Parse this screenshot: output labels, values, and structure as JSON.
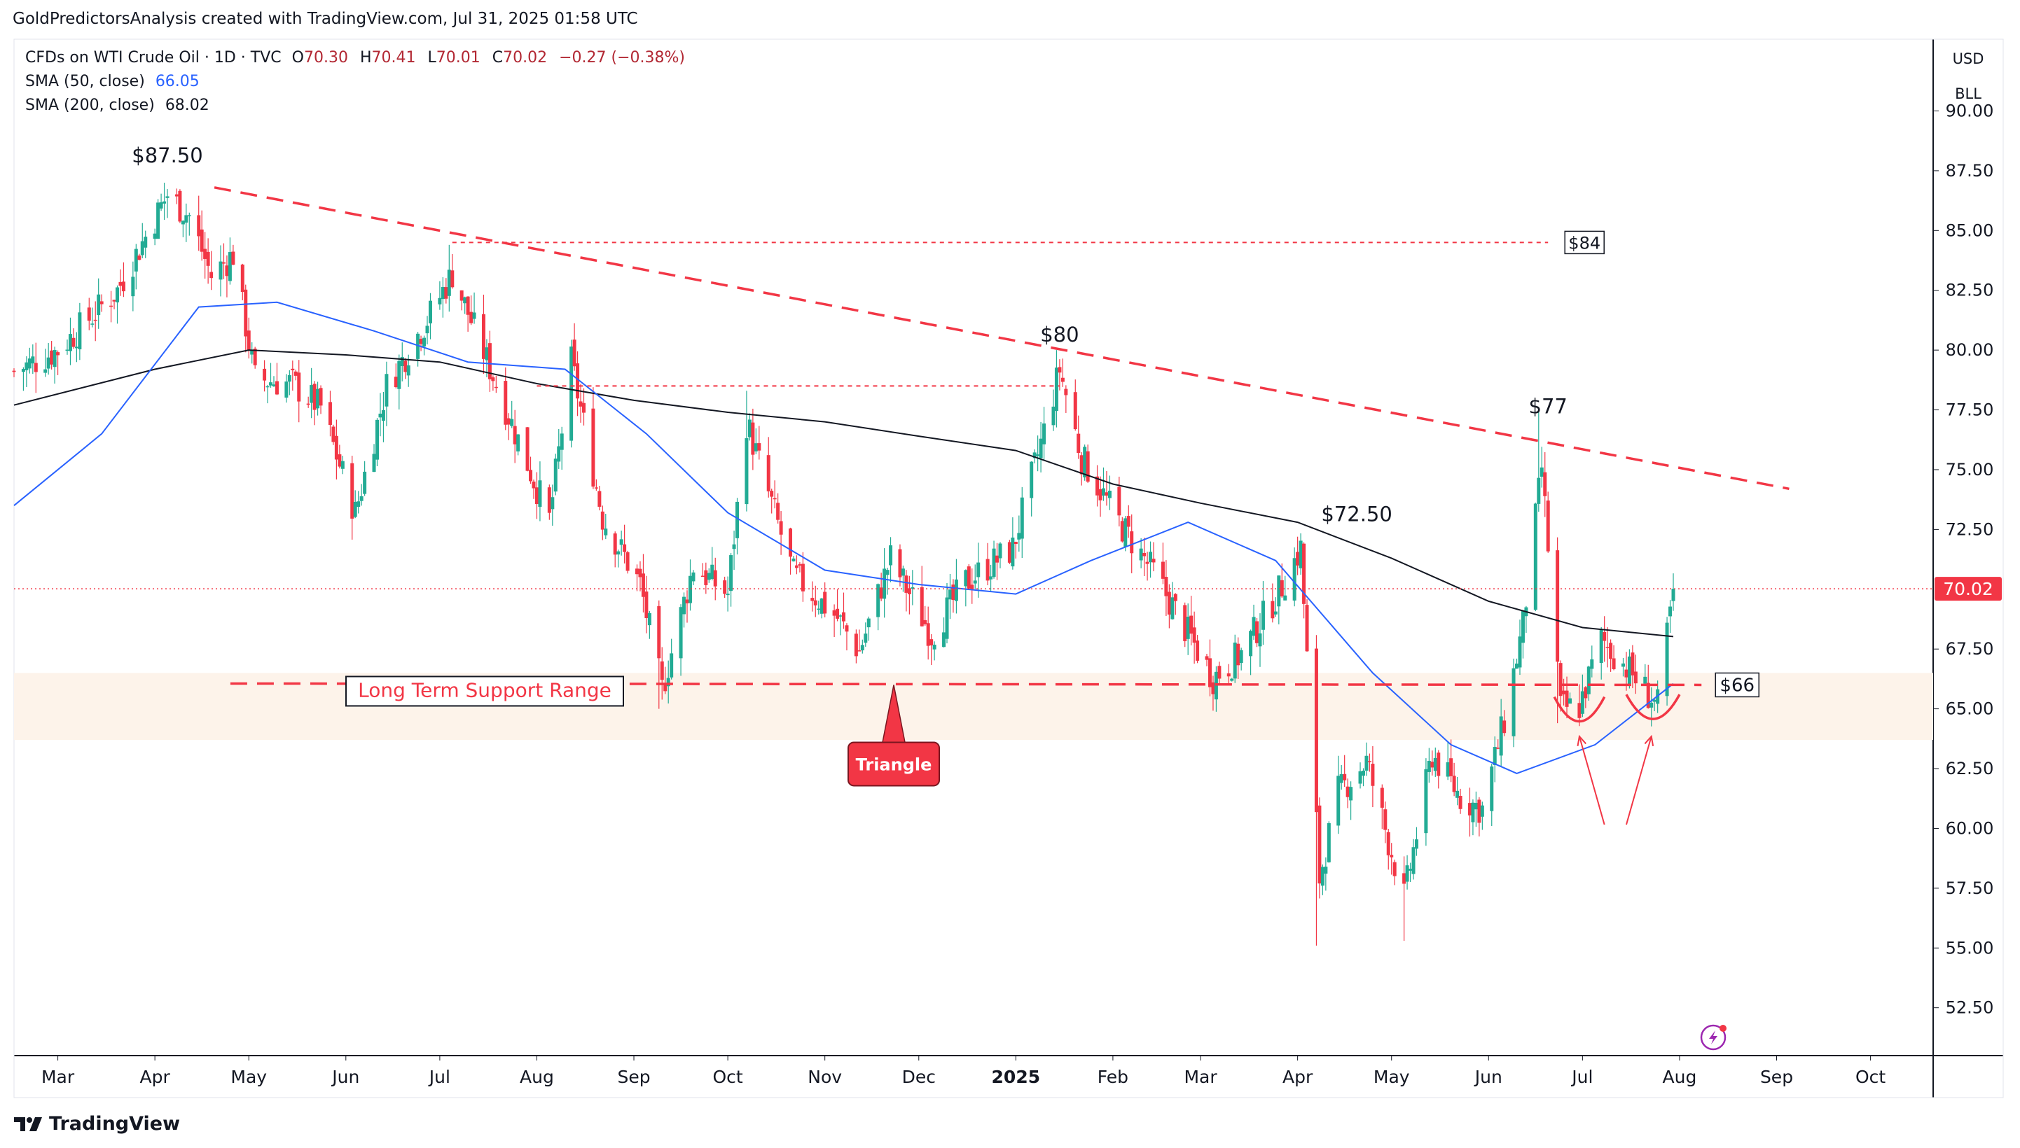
{
  "attribution": "GoldPredictorsAnalysis created with TradingView.com, Jul 31, 2025 01:58 UTC",
  "legend": {
    "symbol": "CFDs on WTI Crude Oil · 1D · TVC",
    "open_label": "O",
    "open": "70.30",
    "high_label": "H",
    "high": "70.41",
    "low_label": "L",
    "low": "70.01",
    "close_label": "C",
    "close": "70.02",
    "change": "−0.27 (−0.38%)",
    "sma50_label": "SMA (50, close)",
    "sma50_value": "66.05",
    "sma200_label": "SMA (200, close)",
    "sma200_value": "68.02"
  },
  "units": {
    "currency": "USD",
    "unit": "BLL"
  },
  "footer": {
    "brand": "TradingView"
  },
  "colors": {
    "up": "#22ab94",
    "down": "#f23645",
    "sma50": "#2962ff",
    "sma200": "#131722",
    "annotation": "#f23645",
    "support_band": "#fdf3ea",
    "price_tag": "#f23645"
  },
  "chart_data": {
    "type": "candlestick",
    "title": "CFDs on WTI Crude Oil · 1D · TVC",
    "x_ticks": [
      "Mar",
      "Apr",
      "May",
      "Jun",
      "Jul",
      "Aug",
      "Sep",
      "Oct",
      "Nov",
      "Dec",
      "2025",
      "Feb",
      "Mar",
      "Apr",
      "May",
      "Jun",
      "Jul",
      "Aug",
      "Sep",
      "Oct"
    ],
    "x_tick_dates": [
      "2024-03-01",
      "2024-04-01",
      "2024-05-01",
      "2024-06-01",
      "2024-07-01",
      "2024-08-01",
      "2024-09-01",
      "2024-10-01",
      "2024-11-01",
      "2024-12-01",
      "2025-01-01",
      "2025-02-01",
      "2025-03-01",
      "2025-04-01",
      "2025-05-01",
      "2025-06-01",
      "2025-07-01",
      "2025-08-01",
      "2025-09-01",
      "2025-10-01"
    ],
    "y_ticks": [
      "52.50",
      "55.00",
      "57.50",
      "60.00",
      "62.50",
      "65.00",
      "67.50",
      "72.50",
      "75.00",
      "77.50",
      "80.00",
      "82.50",
      "85.00",
      "87.50",
      "90.00"
    ],
    "ylim": [
      50.5,
      93.0
    ],
    "last_price": "70.02",
    "key_points": [
      {
        "date": "2024-02-16",
        "close": 79.1
      },
      {
        "date": "2024-03-01",
        "close": 80.0
      },
      {
        "date": "2024-03-20",
        "close": 82.5
      },
      {
        "date": "2024-04-05",
        "close": 86.5
      },
      {
        "date": "2024-04-12",
        "close": 85.6
      },
      {
        "date": "2024-04-19",
        "close": 83.1
      },
      {
        "date": "2024-04-26",
        "close": 84.0
      },
      {
        "date": "2024-05-03",
        "close": 78.8
      },
      {
        "date": "2024-05-15",
        "close": 78.6
      },
      {
        "date": "2024-05-24",
        "close": 77.6
      },
      {
        "date": "2024-06-04",
        "close": 73.2
      },
      {
        "date": "2024-06-14",
        "close": 78.5
      },
      {
        "date": "2024-06-28",
        "close": 81.5
      },
      {
        "date": "2024-07-05",
        "close": 83.2
      },
      {
        "date": "2024-07-19",
        "close": 78.6
      },
      {
        "date": "2024-08-05",
        "close": 72.9
      },
      {
        "date": "2024-08-12",
        "close": 79.5
      },
      {
        "date": "2024-08-22",
        "close": 73.0
      },
      {
        "date": "2024-09-03",
        "close": 70.2
      },
      {
        "date": "2024-09-10",
        "close": 65.8
      },
      {
        "date": "2024-09-20",
        "close": 71.0
      },
      {
        "date": "2024-10-01",
        "close": 69.8
      },
      {
        "date": "2024-10-07",
        "close": 77.0
      },
      {
        "date": "2024-10-14",
        "close": 74.0
      },
      {
        "date": "2024-10-22",
        "close": 70.6
      },
      {
        "date": "2024-11-05",
        "close": 68.8
      },
      {
        "date": "2024-11-12",
        "close": 67.4
      },
      {
        "date": "2024-11-22",
        "close": 71.3
      },
      {
        "date": "2024-12-05",
        "close": 68.1
      },
      {
        "date": "2024-12-16",
        "close": 70.3
      },
      {
        "date": "2024-12-31",
        "close": 71.7
      },
      {
        "date": "2025-01-10",
        "close": 76.6
      },
      {
        "date": "2025-01-15",
        "close": 79.2
      },
      {
        "date": "2025-01-22",
        "close": 75.5
      },
      {
        "date": "2025-02-03",
        "close": 72.8
      },
      {
        "date": "2025-02-14",
        "close": 70.7
      },
      {
        "date": "2025-03-05",
        "close": 66.3
      },
      {
        "date": "2025-03-14",
        "close": 67.3
      },
      {
        "date": "2025-03-26",
        "close": 69.9
      },
      {
        "date": "2025-04-02",
        "close": 71.7
      },
      {
        "date": "2025-04-08",
        "close": 57.9
      },
      {
        "date": "2025-04-14",
        "close": 61.5
      },
      {
        "date": "2025-04-23",
        "close": 62.8
      },
      {
        "date": "2025-05-05",
        "close": 57.1
      },
      {
        "date": "2025-05-14",
        "close": 63.1
      },
      {
        "date": "2025-05-23",
        "close": 61.3
      },
      {
        "date": "2025-05-30",
        "close": 60.8
      },
      {
        "date": "2025-06-06",
        "close": 64.5
      },
      {
        "date": "2025-06-12",
        "close": 68.5
      },
      {
        "date": "2025-06-18",
        "close": 75.1
      },
      {
        "date": "2025-06-24",
        "close": 65.0
      },
      {
        "date": "2025-06-30",
        "close": 65.1
      },
      {
        "date": "2025-07-07",
        "close": 67.9
      },
      {
        "date": "2025-07-14",
        "close": 66.9
      },
      {
        "date": "2025-07-21",
        "close": 65.8
      },
      {
        "date": "2025-07-25",
        "close": 65.1
      },
      {
        "date": "2025-07-30",
        "close": 70.0
      }
    ],
    "sma50_points": [
      {
        "date": "2024-02-16",
        "value": 73.5
      },
      {
        "date": "2024-03-15",
        "value": 76.5
      },
      {
        "date": "2024-04-15",
        "value": 81.8
      },
      {
        "date": "2024-05-10",
        "value": 82.0
      },
      {
        "date": "2024-06-10",
        "value": 80.8
      },
      {
        "date": "2024-07-10",
        "value": 79.5
      },
      {
        "date": "2024-08-10",
        "value": 79.2
      },
      {
        "date": "2024-09-05",
        "value": 76.5
      },
      {
        "date": "2024-10-01",
        "value": 73.2
      },
      {
        "date": "2024-11-01",
        "value": 70.8
      },
      {
        "date": "2024-12-01",
        "value": 70.2
      },
      {
        "date": "2025-01-01",
        "value": 69.8
      },
      {
        "date": "2025-01-25",
        "value": 71.2
      },
      {
        "date": "2025-02-25",
        "value": 72.8
      },
      {
        "date": "2025-03-25",
        "value": 71.2
      },
      {
        "date": "2025-04-25",
        "value": 66.5
      },
      {
        "date": "2025-05-20",
        "value": 63.5
      },
      {
        "date": "2025-06-10",
        "value": 62.3
      },
      {
        "date": "2025-07-05",
        "value": 63.5
      },
      {
        "date": "2025-07-30",
        "value": 66.05
      }
    ],
    "sma200_points": [
      {
        "date": "2024-02-16",
        "value": 77.7
      },
      {
        "date": "2024-04-01",
        "value": 79.2
      },
      {
        "date": "2024-05-01",
        "value": 80.0
      },
      {
        "date": "2024-06-01",
        "value": 79.8
      },
      {
        "date": "2024-07-01",
        "value": 79.5
      },
      {
        "date": "2024-08-01",
        "value": 78.6
      },
      {
        "date": "2024-09-01",
        "value": 77.9
      },
      {
        "date": "2024-10-01",
        "value": 77.4
      },
      {
        "date": "2024-11-01",
        "value": 77.0
      },
      {
        "date": "2024-12-01",
        "value": 76.4
      },
      {
        "date": "2025-01-01",
        "value": 75.8
      },
      {
        "date": "2025-02-01",
        "value": 74.4
      },
      {
        "date": "2025-03-01",
        "value": 73.6
      },
      {
        "date": "2025-04-01",
        "value": 72.8
      },
      {
        "date": "2025-05-01",
        "value": 71.3
      },
      {
        "date": "2025-06-01",
        "value": 69.5
      },
      {
        "date": "2025-07-01",
        "value": 68.4
      },
      {
        "date": "2025-07-30",
        "value": 68.02
      }
    ],
    "annotations": {
      "peaks": [
        {
          "text": "$87.50",
          "date": "2024-04-05",
          "price": 87.5
        },
        {
          "text": "$80",
          "date": "2025-01-15",
          "price": 80.0
        },
        {
          "text": "$72.50",
          "date": "2025-04-02",
          "price": 72.5
        },
        {
          "text": "$77",
          "date": "2025-06-20",
          "price": 77.0
        }
      ],
      "resistance_trendline": {
        "from": {
          "date": "2024-04-20",
          "price": 86.8
        },
        "to": {
          "date": "2025-09-05",
          "price": 74.2
        }
      },
      "level_84": {
        "text": "$84",
        "price": 84.5,
        "from": "2024-07-05",
        "to": "2025-06-20"
      },
      "level_78": {
        "price": 78.5,
        "from": "2024-08-01",
        "to": "2025-01-15"
      },
      "support_line": {
        "text": "$66",
        "price": 66.0,
        "from": "2024-02-18",
        "to": "2025-08-08"
      },
      "support_band": {
        "label": "Long Term Support Range",
        "low": 63.7,
        "high": 66.5
      },
      "triangle_marker": {
        "text": "Triangle",
        "date": "2024-11-23",
        "price": 66.0
      },
      "current_price_line": 70.02
    }
  }
}
